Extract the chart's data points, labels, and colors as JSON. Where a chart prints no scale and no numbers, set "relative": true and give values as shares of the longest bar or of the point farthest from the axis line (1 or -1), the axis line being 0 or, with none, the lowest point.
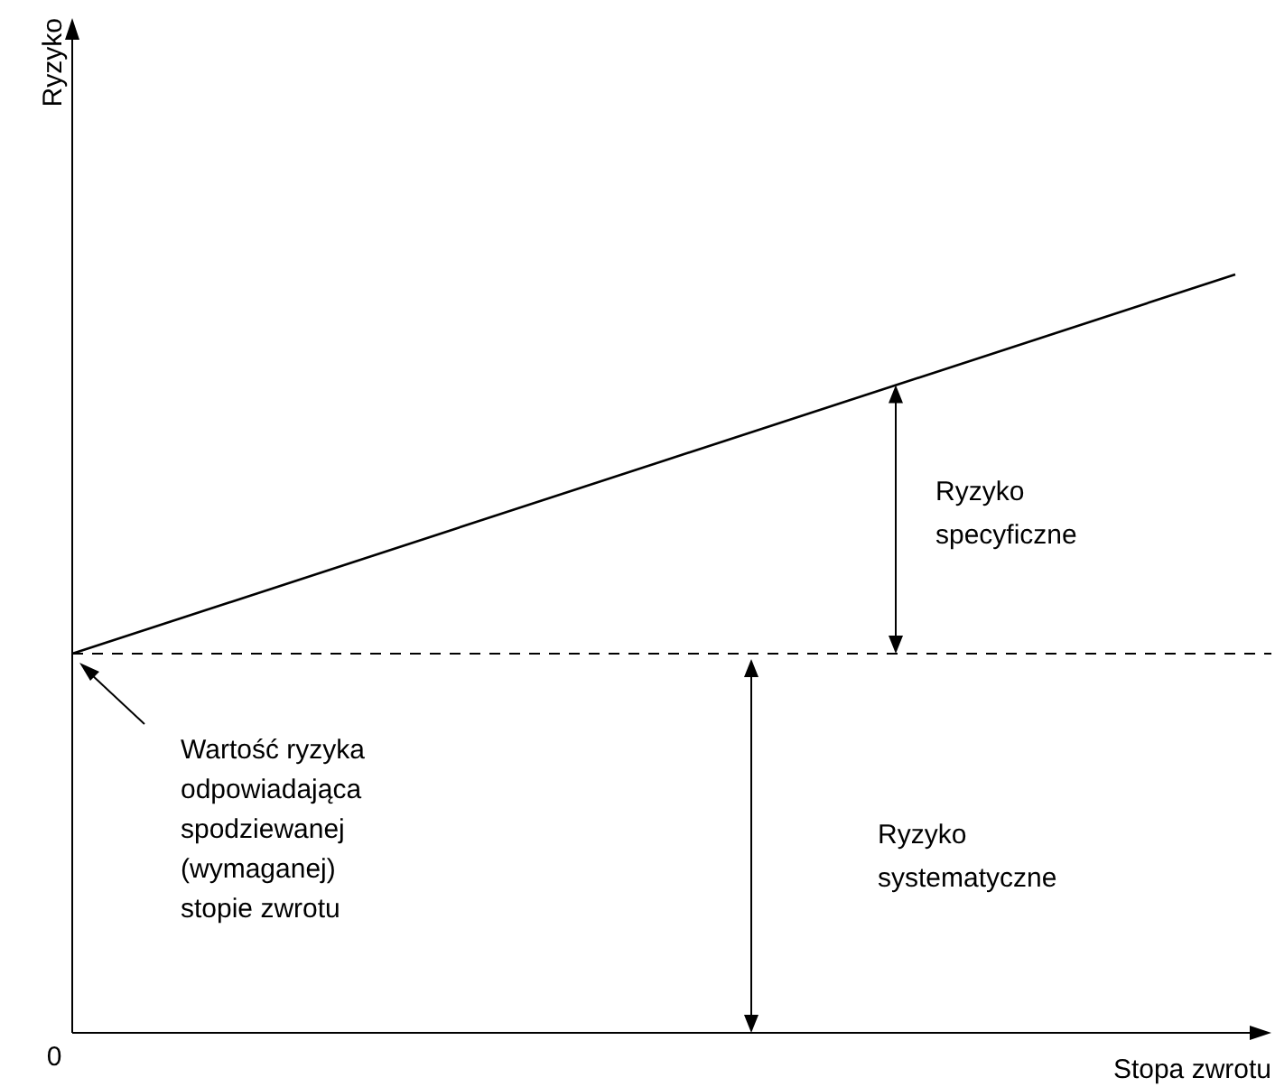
{
  "chart_data": {
    "type": "line",
    "relative": true,
    "xlabel": "Stopa zwrotu",
    "categories": [
      null,
      null
    ],
    "series": [
      {
        "color": "#000000",
        "values": [
          0.5,
          1
        ]
      }
    ],
    "ref_lines": [
      {
        "axis": "y",
        "value": 0.5,
        "line_style": "dashed",
        "color": "#000000"
      }
    ],
    "annotations": [
      "0",
      "Ryzyko specyficzne",
      "Wartość ryzyka odpowiadająca spodziewanej (wymaganej) stopie zwrotu",
      "Ryzyko systematyczne",
      "Ryzyko"
    ],
    "marker": "none",
    "line_style": "solid"
  }
}
